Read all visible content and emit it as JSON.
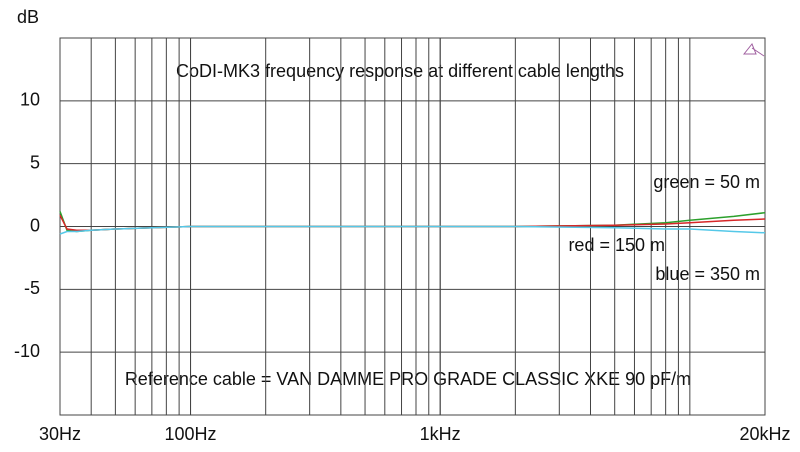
{
  "chart_data": {
    "type": "line",
    "title": "CoDI-MK3 frequency response at different cable lengths",
    "y_label": "dB",
    "annotation": "Reference cable = VAN DAMME PRO GRADE CLASSIC XKE 90 pF/m",
    "x_scale": "log",
    "x": [
      30,
      32,
      35,
      40,
      50,
      70,
      100,
      200,
      500,
      1000,
      2000,
      5000,
      8000,
      10000,
      15000,
      20000
    ],
    "series": [
      {
        "name": "green = 50 m",
        "color": "#2ca02c",
        "values": [
          1.2,
          -0.3,
          -0.4,
          -0.3,
          -0.2,
          -0.1,
          0,
          0,
          0,
          0,
          0,
          0.1,
          0.3,
          0.5,
          0.8,
          1.1
        ]
      },
      {
        "name": "red = 150 m",
        "color": "#d62728",
        "values": [
          0.9,
          -0.2,
          -0.3,
          -0.3,
          -0.2,
          -0.1,
          0,
          0,
          0,
          0,
          0,
          0.1,
          0.2,
          0.3,
          0.5,
          0.6
        ]
      },
      {
        "name": "blue = 350 m",
        "color": "#55c8e8",
        "values": [
          -0.6,
          -0.4,
          -0.4,
          -0.3,
          -0.2,
          -0.1,
          0,
          0,
          0,
          0,
          0,
          -0.1,
          -0.2,
          -0.2,
          -0.4,
          -0.5
        ]
      }
    ],
    "xlim": [
      30,
      20000
    ],
    "xticks": [
      {
        "value": 30,
        "label": "30Hz"
      },
      {
        "value": 100,
        "label": "100Hz"
      },
      {
        "value": 1000,
        "label": "1kHz"
      },
      {
        "value": 20000,
        "label": "20kHz"
      }
    ],
    "xgrid": [
      40,
      50,
      60,
      70,
      80,
      90,
      100,
      200,
      300,
      400,
      500,
      600,
      700,
      800,
      900,
      1000,
      2000,
      3000,
      4000,
      5000,
      6000,
      7000,
      8000,
      9000,
      10000
    ],
    "ylim": [
      -15,
      15
    ],
    "yticks": [
      -10,
      -5,
      0,
      5,
      10
    ],
    "grid": true
  }
}
